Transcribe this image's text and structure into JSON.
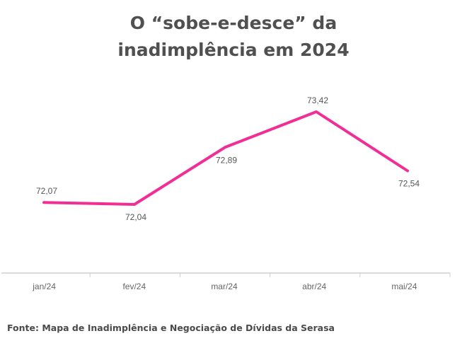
{
  "title": {
    "line1": "O “sobe-e-desce” da",
    "line2": "inadimplência em 2024"
  },
  "source": "Fonte: Mapa de Inadimplência e Negociação de Dívidas da Serasa",
  "colors": {
    "line": "#f02e96",
    "axis": "#cfcfcf",
    "title": "#505050"
  },
  "chart_data": {
    "type": "line",
    "categories": [
      "jan/24",
      "fev/24",
      "mar/24",
      "abr/24",
      "mai/24"
    ],
    "series": [
      {
        "values": [
          72.07,
          72.04,
          72.89,
          73.42,
          72.54
        ],
        "labels": [
          "72,07",
          "72,04",
          "72,89",
          "73,42",
          "72,54"
        ]
      }
    ],
    "grid": false,
    "legend": "none"
  }
}
